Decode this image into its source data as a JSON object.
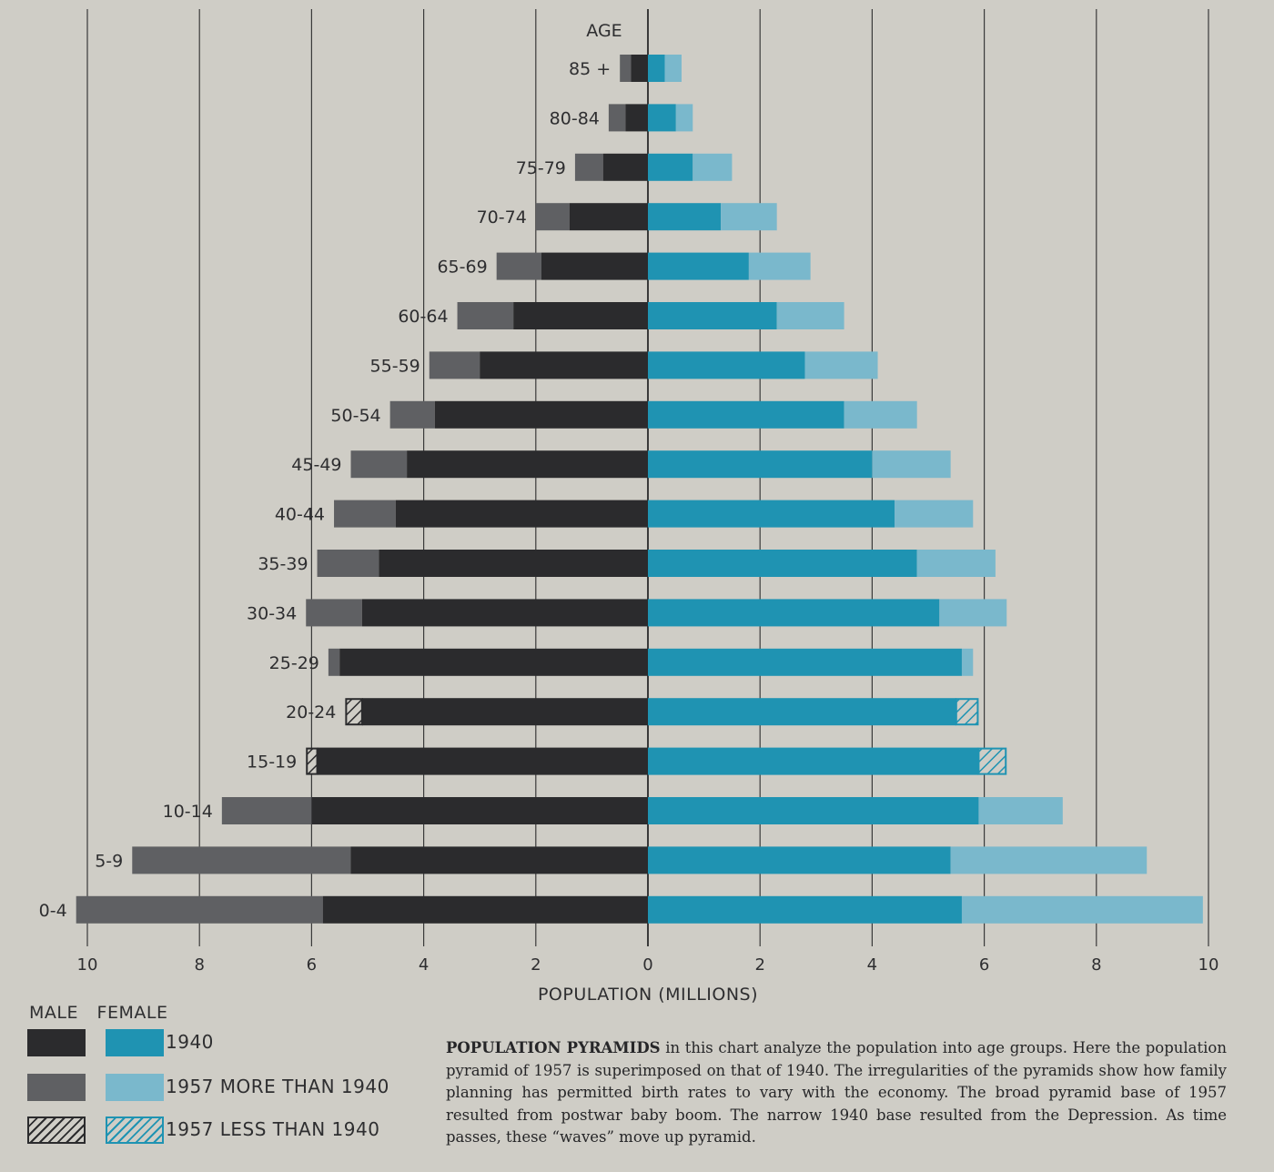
{
  "chart_data": {
    "type": "bar",
    "orientation": "horizontal-population-pyramid",
    "age_axis_label": "AGE",
    "xlabel": "POPULATION (MILLIONS)",
    "x_ticks": [
      "10",
      "8",
      "6",
      "4",
      "2",
      "0",
      "2",
      "4",
      "6",
      "8",
      "10"
    ],
    "xlim": [
      -10,
      10
    ],
    "grid": true,
    "categories": [
      "85 +",
      "80-84",
      "75-79",
      "70-74",
      "65-69",
      "60-64",
      "55-59",
      "50-54",
      "45-49",
      "40-44",
      "35-39",
      "30-34",
      "25-29",
      "20-24",
      "15-19",
      "10-14",
      "5-9",
      "0-4"
    ],
    "series": [
      {
        "name": "MALE 1940",
        "values": [
          0.3,
          0.4,
          0.8,
          1.4,
          1.9,
          2.4,
          3.0,
          3.8,
          4.3,
          4.5,
          4.8,
          5.1,
          5.5,
          5.4,
          6.1,
          6.0,
          5.3,
          5.8
        ]
      },
      {
        "name": "MALE 1957",
        "values": [
          0.5,
          0.7,
          1.3,
          2.0,
          2.7,
          3.4,
          3.9,
          4.6,
          5.3,
          5.6,
          5.9,
          6.1,
          5.7,
          5.1,
          5.9,
          7.6,
          9.2,
          10.2
        ]
      },
      {
        "name": "FEMALE 1940",
        "values": [
          0.3,
          0.5,
          0.8,
          1.3,
          1.8,
          2.3,
          2.8,
          3.5,
          4.0,
          4.4,
          4.8,
          5.2,
          5.6,
          5.9,
          6.4,
          5.9,
          5.4,
          5.6
        ]
      },
      {
        "name": "FEMALE 1957",
        "values": [
          0.6,
          0.8,
          1.5,
          2.3,
          2.9,
          3.5,
          4.1,
          4.8,
          5.4,
          5.8,
          6.2,
          6.4,
          5.8,
          5.5,
          5.9,
          7.4,
          8.9,
          9.9
        ]
      }
    ],
    "colors": {
      "male_1940": "#2b2b2d",
      "male_1957_more": "#5f6063",
      "female_1940": "#1f93b2",
      "female_1957_more": "#7ab8cc",
      "grid": "#3a3a3a"
    },
    "legend": {
      "male_header": "MALE",
      "female_header": "FEMALE",
      "entries": [
        "1940",
        "1957 MORE THAN 1940",
        "1957 LESS THAN 1940"
      ],
      "placement": "bottom-left"
    }
  },
  "caption": {
    "lead": "POPULATION PYRAMIDS",
    "text": " in this chart analyze the population into age groups. Here the population pyramid of 1957 is superimposed on that of 1940. The irregularities of the pyramids show how family planning has permitted birth rates to vary with the economy. The broad pyramid base of 1957 resulted from postwar baby boom. The narrow 1940 base resulted from the Depression. As time passes, these “waves” move up pyramid."
  }
}
